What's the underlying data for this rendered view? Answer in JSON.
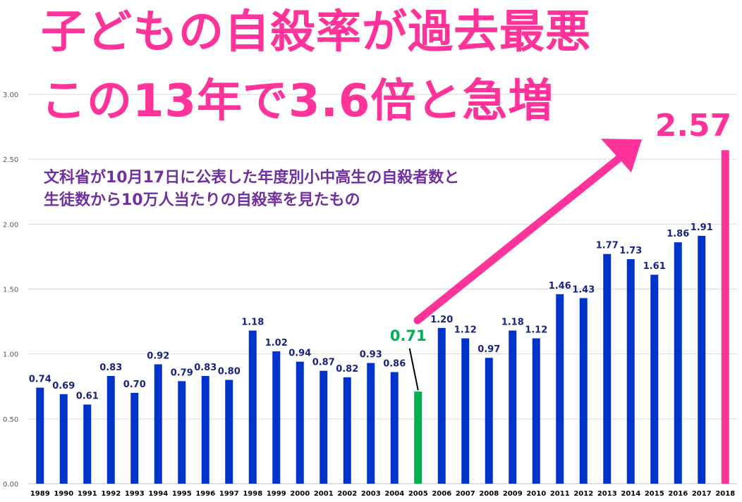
{
  "headline": {
    "line1": "子どもの自殺率が過去最悪",
    "line2": "この13年で3.6倍と急増"
  },
  "subtitle": {
    "line1": "文科省が10月17日に公表した年度別小中高生の自殺者数と",
    "line2": "生徒数から10万人当たりの自殺率を見たもの"
  },
  "colors": {
    "bar": "#0033cc",
    "highlight_2005": "#00b050",
    "highlight_2018": "#ff3399",
    "headline": "#ff3399",
    "subtitle": "#7030a0",
    "label": "#1a237e"
  },
  "chart_data": {
    "type": "bar",
    "categories": [
      "1989",
      "1990",
      "1991",
      "1992",
      "1993",
      "1994",
      "1995",
      "1996",
      "1997",
      "1998",
      "1999",
      "2000",
      "2001",
      "2002",
      "2003",
      "2004",
      "2005",
      "2006",
      "2007",
      "2008",
      "2009",
      "2010",
      "2011",
      "2012",
      "2013",
      "2014",
      "2015",
      "2016",
      "2017",
      "2018"
    ],
    "values": [
      0.74,
      0.69,
      0.61,
      0.83,
      0.7,
      0.92,
      0.79,
      0.83,
      0.8,
      1.18,
      1.02,
      0.94,
      0.87,
      0.82,
      0.93,
      0.86,
      0.71,
      1.2,
      1.12,
      0.97,
      1.18,
      1.12,
      1.46,
      1.43,
      1.77,
      1.73,
      1.61,
      1.86,
      1.91,
      2.57
    ],
    "data_labels": [
      "0.74",
      "0.69",
      "0.61",
      "0.83",
      "0.70",
      "0.92",
      "0.79",
      "0.83",
      "0.80",
      "1.18",
      "1.02",
      "0.94",
      "0.87",
      "0.82",
      "0.93",
      "0.86",
      "0.71",
      "1.20",
      "1.12",
      "0.97",
      "1.18",
      "1.12",
      "1.46",
      "1.43",
      "1.77",
      "1.73",
      "1.61",
      "1.86",
      "1.91",
      "2.57"
    ],
    "highlighted": {
      "2005": "green",
      "2018": "pink"
    },
    "ylim": [
      0,
      3
    ],
    "yticks": [
      "0.00",
      "0.50",
      "1.00",
      "1.50",
      "2.00",
      "2.50",
      "3.00"
    ],
    "grid": true,
    "annotation": "arrow from 2005 to 2018",
    "xlabel": "",
    "ylabel": ""
  }
}
